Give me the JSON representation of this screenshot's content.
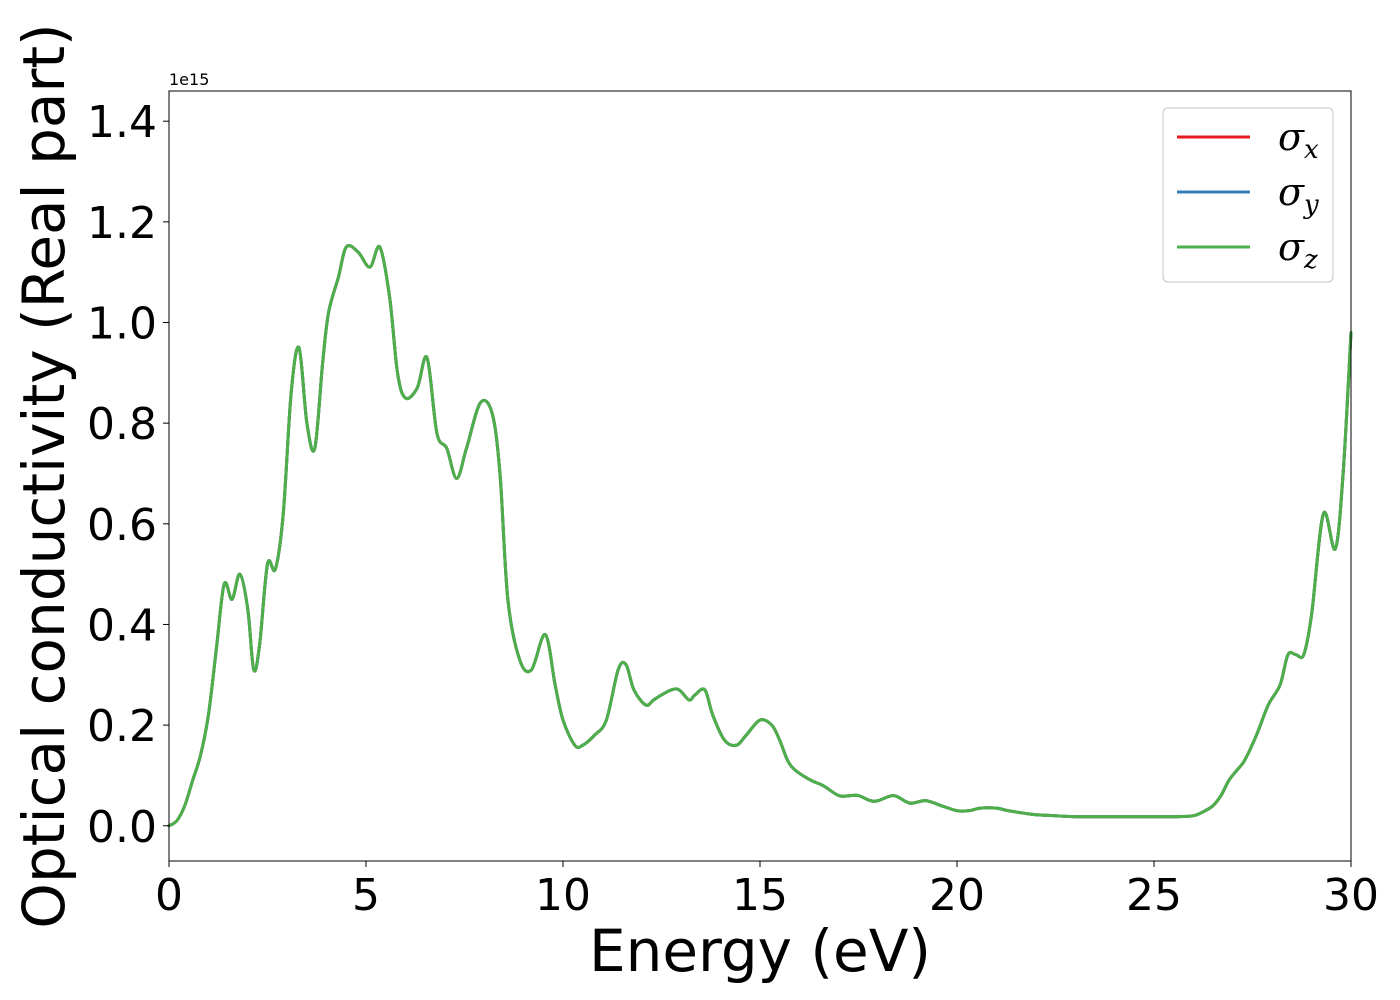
{
  "chart_data": {
    "type": "line",
    "xlabel": "Energy (eV)",
    "ylabel": "Optical conductivity (Real part)",
    "y_offset_label": "1e15",
    "y_scale": 1000000000000000.0,
    "xlim": [
      0,
      30
    ],
    "ylim": [
      -0.07,
      1.46
    ],
    "xticks": [
      0,
      5,
      10,
      15,
      20,
      25,
      30
    ],
    "xtick_labels": [
      "0",
      "5",
      "10",
      "15",
      "20",
      "25",
      "30"
    ],
    "yticks": [
      0.0,
      0.2,
      0.4,
      0.6,
      0.8,
      1.0,
      1.2,
      1.4
    ],
    "ytick_labels": [
      "0.0",
      "0.2",
      "0.4",
      "0.6",
      "0.8",
      "1.0",
      "1.2",
      "1.4"
    ],
    "grid": false,
    "legend_position": "top-right",
    "series": [
      {
        "name": "σ",
        "subscript": "x",
        "color": "#e41a1c"
      },
      {
        "name": "σ",
        "subscript": "y",
        "color": "#377eb8"
      },
      {
        "name": "σ",
        "subscript": "z",
        "color": "#4daf4a"
      }
    ],
    "x": [
      0,
      0.2,
      0.4,
      0.6,
      0.8,
      1.0,
      1.2,
      1.4,
      1.6,
      1.8,
      2.0,
      2.15,
      2.3,
      2.5,
      2.7,
      2.9,
      3.1,
      3.3,
      3.5,
      3.7,
      3.9,
      4.05,
      4.3,
      4.5,
      4.8,
      5.1,
      5.35,
      5.6,
      5.8,
      6.0,
      6.3,
      6.55,
      6.8,
      7.05,
      7.3,
      7.55,
      7.9,
      8.2,
      8.4,
      8.6,
      8.9,
      9.2,
      9.55,
      9.8,
      10.0,
      10.3,
      10.5,
      10.8,
      11.1,
      11.4,
      11.6,
      11.8,
      12.1,
      12.3,
      12.5,
      12.75,
      12.95,
      13.2,
      13.35,
      13.6,
      13.8,
      14.1,
      14.4,
      14.65,
      15.0,
      15.3,
      15.5,
      15.7,
      15.9,
      16.3,
      16.6,
      17.0,
      17.3,
      17.5,
      17.8,
      18.0,
      18.4,
      18.8,
      19.2,
      19.6,
      20.0,
      20.3,
      20.6,
      21.0,
      21.3,
      21.7,
      22.0,
      22.5,
      23.0,
      23.5,
      24.0,
      24.5,
      25.0,
      25.5,
      26.0,
      26.3,
      26.5,
      26.7,
      26.9,
      27.1,
      27.3,
      27.6,
      27.9,
      28.2,
      28.4,
      28.6,
      28.8,
      29.0,
      29.3,
      29.6,
      29.8,
      30.0
    ],
    "values": [
      0.0,
      0.01,
      0.04,
      0.09,
      0.14,
      0.22,
      0.35,
      0.48,
      0.45,
      0.5,
      0.43,
      0.31,
      0.36,
      0.52,
      0.51,
      0.62,
      0.86,
      0.95,
      0.8,
      0.75,
      0.92,
      1.02,
      1.09,
      1.15,
      1.14,
      1.11,
      1.15,
      1.05,
      0.9,
      0.85,
      0.87,
      0.93,
      0.78,
      0.75,
      0.69,
      0.75,
      0.84,
      0.82,
      0.7,
      0.45,
      0.33,
      0.31,
      0.38,
      0.28,
      0.21,
      0.16,
      0.16,
      0.18,
      0.21,
      0.31,
      0.32,
      0.27,
      0.24,
      0.25,
      0.26,
      0.27,
      0.27,
      0.25,
      0.26,
      0.27,
      0.22,
      0.17,
      0.16,
      0.18,
      0.21,
      0.2,
      0.17,
      0.13,
      0.11,
      0.09,
      0.08,
      0.06,
      0.06,
      0.06,
      0.05,
      0.05,
      0.06,
      0.045,
      0.05,
      0.04,
      0.03,
      0.03,
      0.035,
      0.035,
      0.03,
      0.025,
      0.022,
      0.02,
      0.018,
      0.018,
      0.018,
      0.018,
      0.018,
      0.018,
      0.02,
      0.03,
      0.04,
      0.06,
      0.09,
      0.11,
      0.13,
      0.18,
      0.24,
      0.28,
      0.34,
      0.34,
      0.34,
      0.42,
      0.62,
      0.55,
      0.7,
      0.98
    ]
  }
}
